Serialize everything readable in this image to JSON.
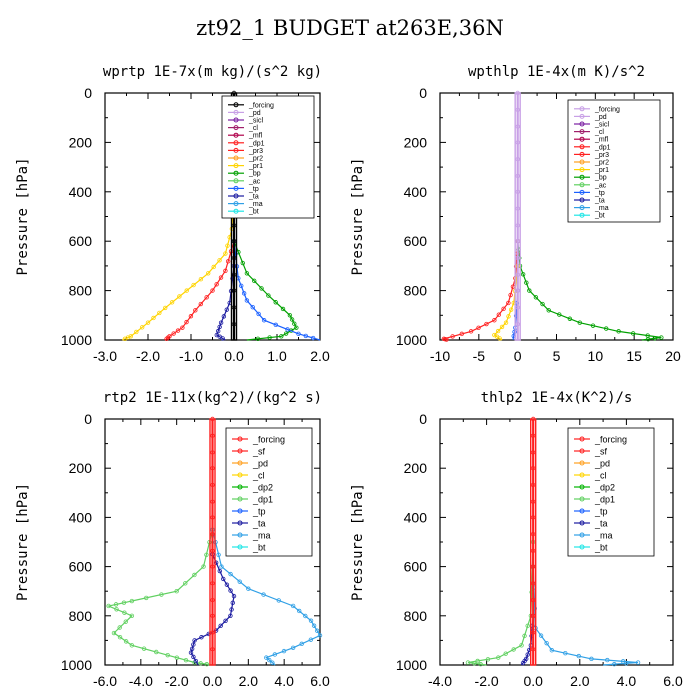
{
  "figure_title": "zt92_1  BUDGET at263E,36N",
  "colors": {
    "forcing": "#000000",
    "pd": "#c8a0e6",
    "sicl": "#7a1fa2",
    "cl": "#a0206a",
    "mfl": "#b0004a",
    "dp1": "#ff2020",
    "pr3": "#ff2020",
    "pr2": "#ffa020",
    "pr1": "#ffd400",
    "bp": "#00a000",
    "ac": "#60d060",
    "tp": "#1a60ff",
    "ta": "#1a1aa0",
    "ma": "#30a0e6",
    "bt": "#20e6e6",
    "sf": "#ff2020",
    "dp2": "#00b400",
    "dp1g": "#60d060",
    "forcing_red": "#ff2020"
  },
  "chart_data": [
    {
      "type": "line",
      "title": "wprtp  1E-7x(m kg)/(s^2 kg)",
      "ylabel": "Pressure [hPa]",
      "xlim": [
        -3.0,
        2.0
      ],
      "xticks": [
        "-3.0",
        "-2.0",
        "-1.0",
        "0.0",
        "1.0",
        "2.0"
      ],
      "xtick_values": [
        -3,
        -2,
        -1,
        0,
        1,
        2
      ],
      "ylim": [
        1000,
        0
      ],
      "yticks": [
        "0",
        "200",
        "400",
        "600",
        "800",
        "1000"
      ],
      "legend": [
        "_forcing",
        "_pd",
        "_sicl",
        "_cl",
        "_mfl",
        "_dp1",
        "_pr3",
        "_pr2",
        "_pr1",
        "_bp",
        "_ac",
        "_tp",
        "_ta",
        "_ma",
        "_bt"
      ],
      "legend_colors": [
        "forcing",
        "pd",
        "sicl",
        "cl",
        "mfl",
        "dp1",
        "pr3",
        "pr2",
        "pr1",
        "bp",
        "ac",
        "tp",
        "ta",
        "ma",
        "bt"
      ],
      "legend_position": "top-right",
      "series": [
        {
          "name": "_forcing",
          "color": "forcing",
          "points": [
            [
              0,
              0
            ],
            [
              0,
              200
            ],
            [
              0,
              400
            ],
            [
              0,
              600
            ],
            [
              0,
              800
            ],
            [
              0,
              1000
            ]
          ]
        },
        {
          "name": "_pr1",
          "color": "pr1",
          "points": [
            [
              0,
              400
            ],
            [
              -0.05,
              550
            ],
            [
              -0.2,
              650
            ],
            [
              -0.6,
              730
            ],
            [
              -1.1,
              800
            ],
            [
              -1.6,
              870
            ],
            [
              -2.0,
              930
            ],
            [
              -2.4,
              985
            ],
            [
              -2.6,
              1000
            ]
          ]
        },
        {
          "name": "_dp1",
          "color": "dp1",
          "points": [
            [
              0,
              600
            ],
            [
              -0.2,
              720
            ],
            [
              -0.5,
              800
            ],
            [
              -0.9,
              880
            ],
            [
              -1.2,
              950
            ],
            [
              -1.5,
              985
            ],
            [
              -1.6,
              1000
            ]
          ]
        },
        {
          "name": "_bp",
          "color": "bp",
          "points": [
            [
              0,
              600
            ],
            [
              0.3,
              730
            ],
            [
              0.8,
              820
            ],
            [
              1.3,
              900
            ],
            [
              1.45,
              950
            ],
            [
              1.1,
              985
            ],
            [
              0.3,
              1000
            ]
          ]
        },
        {
          "name": "_tp",
          "color": "tp",
          "points": [
            [
              0,
              600
            ],
            [
              0.1,
              750
            ],
            [
              0.3,
              840
            ],
            [
              0.7,
              920
            ],
            [
              1.5,
              975
            ],
            [
              2.0,
              1000
            ]
          ]
        },
        {
          "name": "_ta",
          "color": "ta",
          "points": [
            [
              0,
              700
            ],
            [
              -0.1,
              850
            ],
            [
              -0.3,
              930
            ],
            [
              -0.4,
              980
            ],
            [
              -0.2,
              1000
            ]
          ]
        }
      ]
    },
    {
      "type": "line",
      "title": "wpthlp  1E-4x(m K)/s^2",
      "ylabel": "Pressure [hPa]",
      "xlim": [
        -10,
        20
      ],
      "xticks": [
        "-10",
        "-5",
        "0",
        "5",
        "10",
        "15",
        "20"
      ],
      "xtick_values": [
        -10,
        -5,
        0,
        5,
        10,
        15,
        20
      ],
      "ylim": [
        1000,
        0
      ],
      "yticks": [
        "0",
        "200",
        "400",
        "600",
        "800",
        "1000"
      ],
      "legend": [
        "_forcing",
        "_pd",
        "_sicl",
        "_cl",
        "_mfl",
        "_dp1",
        "_pr3",
        "_pr2",
        "_pr1",
        "_bp",
        "_ac",
        "_tp",
        "_ta",
        "_ma",
        "_bt"
      ],
      "legend_colors": [
        "pd",
        "pd",
        "sicl",
        "cl",
        "mfl",
        "dp1",
        "pr3",
        "pr2",
        "pr1",
        "bp",
        "ac",
        "tp",
        "ta",
        "ma",
        "bt"
      ],
      "legend_position": "top-right",
      "series": [
        {
          "name": "_forcing",
          "color": "pd",
          "points": [
            [
              0,
              0
            ],
            [
              0,
              200
            ],
            [
              0,
              400
            ],
            [
              0,
              600
            ],
            [
              0,
              800
            ],
            [
              0,
              1000
            ]
          ]
        },
        {
          "name": "_bp",
          "color": "bp",
          "points": [
            [
              0,
              600
            ],
            [
              0.3,
              700
            ],
            [
              1.5,
              800
            ],
            [
              4,
              880
            ],
            [
              8,
              930
            ],
            [
              13,
              965
            ],
            [
              18.5,
              990
            ],
            [
              16,
              1000
            ]
          ]
        },
        {
          "name": "_dp1",
          "color": "dp1",
          "points": [
            [
              0,
              600
            ],
            [
              -0.3,
              750
            ],
            [
              -1.2,
              850
            ],
            [
              -3,
              920
            ],
            [
              -6,
              965
            ],
            [
              -9.5,
              995
            ],
            [
              -9,
              1000
            ]
          ]
        },
        {
          "name": "_pr1",
          "color": "pr1",
          "points": [
            [
              0,
              700
            ],
            [
              -0.5,
              850
            ],
            [
              -1.5,
              930
            ],
            [
              -3,
              980
            ],
            [
              -2,
              1000
            ]
          ]
        },
        {
          "name": "_tp",
          "color": "tp",
          "points": [
            [
              0,
              800
            ],
            [
              -0.3,
              950
            ],
            [
              -0.6,
              1000
            ]
          ]
        }
      ]
    },
    {
      "type": "line",
      "title": "rtp2  1E-11x(kg^2)/(kg^2 s)",
      "ylabel": "Pressure [hPa]",
      "xlim": [
        -6.0,
        6.0
      ],
      "xticks": [
        "-6.0",
        "-4.0",
        "-2.0",
        "0.0",
        "2.0",
        "4.0",
        "6.0"
      ],
      "xtick_values": [
        -6,
        -4,
        -2,
        0,
        2,
        4,
        6
      ],
      "ylim": [
        1000,
        0
      ],
      "yticks": [
        "0",
        "200",
        "400",
        "600",
        "800",
        "1000"
      ],
      "legend": [
        "_forcing",
        "_sf",
        "_pd",
        "_cl",
        "_dp2",
        "_dp1",
        "_tp",
        "_ta",
        "_ma",
        "_bt"
      ],
      "legend_colors": [
        "forcing_red",
        "sf",
        "pr2",
        "pr1",
        "dp2",
        "dp1g",
        "tp",
        "ta",
        "ma",
        "bt"
      ],
      "legend_position": "top-right",
      "series": [
        {
          "name": "_forcing",
          "color": "forcing_red",
          "points": [
            [
              0,
              0
            ],
            [
              0,
              200
            ],
            [
              0,
              400
            ],
            [
              0,
              600
            ],
            [
              0,
              800
            ],
            [
              0,
              1000
            ]
          ]
        },
        {
          "name": "_dp1",
          "color": "dp1g",
          "points": [
            [
              0,
              450
            ],
            [
              -0.5,
              600
            ],
            [
              -2.0,
              700
            ],
            [
              -4.5,
              740
            ],
            [
              -5.8,
              760
            ],
            [
              -4.5,
              800
            ],
            [
              -5.5,
              870
            ],
            [
              -4.5,
              920
            ],
            [
              -2.5,
              960
            ],
            [
              -1,
              990
            ],
            [
              0,
              1000
            ]
          ]
        },
        {
          "name": "_ma",
          "color": "ma",
          "points": [
            [
              0,
              450
            ],
            [
              0.5,
              600
            ],
            [
              2.0,
              690
            ],
            [
              4.5,
              760
            ],
            [
              5.5,
              820
            ],
            [
              6.0,
              880
            ],
            [
              4.5,
              930
            ],
            [
              3.0,
              970
            ],
            [
              3.5,
              1000
            ]
          ]
        },
        {
          "name": "_ta",
          "color": "ta",
          "points": [
            [
              0,
              550
            ],
            [
              0.6,
              650
            ],
            [
              1.2,
              720
            ],
            [
              1.0,
              800
            ],
            [
              0.2,
              860
            ],
            [
              -1.0,
              900
            ],
            [
              -1.2,
              950
            ],
            [
              -0.8,
              1000
            ]
          ]
        }
      ]
    },
    {
      "type": "line",
      "title": "thlp2  1E-4x(K^2)/s",
      "ylabel": "Pressure [hPa]",
      "xlim": [
        -4.0,
        6.0
      ],
      "xticks": [
        "-4.0",
        "-2.0",
        "0.0",
        "2.0",
        "4.0",
        "6.0"
      ],
      "xtick_values": [
        -4,
        -2,
        0,
        2,
        4,
        6
      ],
      "ylim": [
        1000,
        0
      ],
      "yticks": [
        "0",
        "200",
        "400",
        "600",
        "800",
        "1000"
      ],
      "legend": [
        "_forcing",
        "_sf",
        "_pd",
        "_cl",
        "_dp2",
        "_dp1",
        "_tp",
        "_ta",
        "_ma",
        "_bt"
      ],
      "legend_colors": [
        "forcing_red",
        "sf",
        "pr2",
        "pr1",
        "dp2",
        "dp1g",
        "tp",
        "ta",
        "ma",
        "bt"
      ],
      "legend_position": "top-right",
      "series": [
        {
          "name": "_forcing",
          "color": "forcing_red",
          "points": [
            [
              0,
              0
            ],
            [
              0,
              200
            ],
            [
              0,
              400
            ],
            [
              0,
              600
            ],
            [
              0,
              800
            ],
            [
              0,
              1000
            ]
          ]
        },
        {
          "name": "_dp1",
          "color": "dp1g",
          "points": [
            [
              0,
              500
            ],
            [
              -0.1,
              800
            ],
            [
              -0.5,
              920
            ],
            [
              -1.5,
              970
            ],
            [
              -2.8,
              990
            ],
            [
              -2,
              1000
            ]
          ]
        },
        {
          "name": "_ma",
          "color": "ma",
          "points": [
            [
              0,
              600
            ],
            [
              0.1,
              850
            ],
            [
              0.8,
              940
            ],
            [
              2.5,
              975
            ],
            [
              4.5,
              990
            ],
            [
              3,
              1000
            ]
          ]
        },
        {
          "name": "_ta",
          "color": "ta",
          "points": [
            [
              0,
              800
            ],
            [
              -0.1,
              920
            ],
            [
              -0.3,
              975
            ],
            [
              -0.5,
              1000
            ]
          ]
        }
      ]
    }
  ]
}
